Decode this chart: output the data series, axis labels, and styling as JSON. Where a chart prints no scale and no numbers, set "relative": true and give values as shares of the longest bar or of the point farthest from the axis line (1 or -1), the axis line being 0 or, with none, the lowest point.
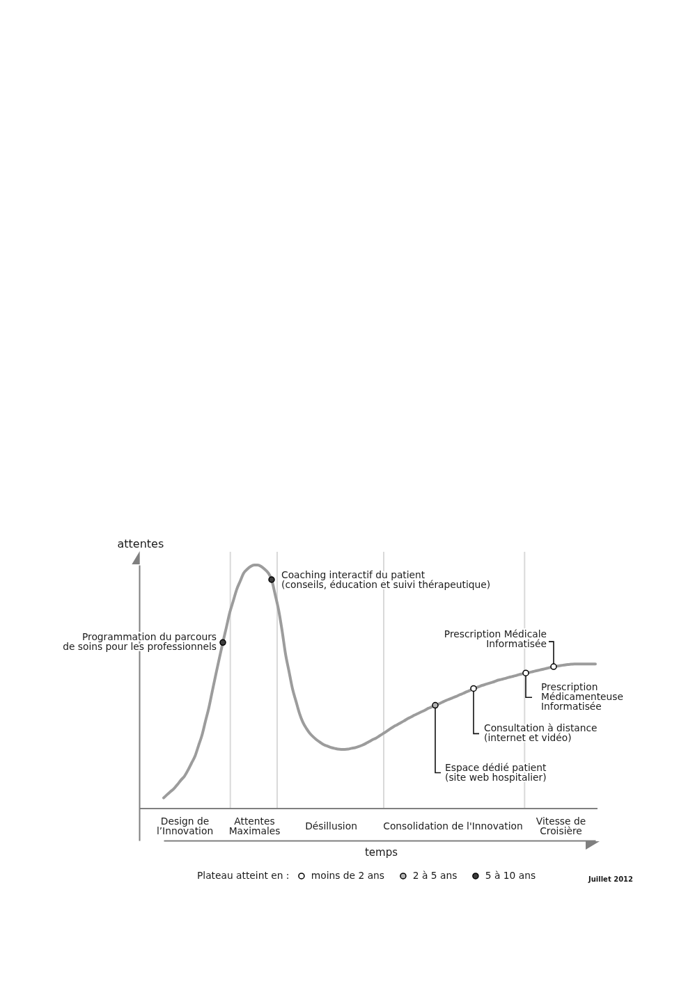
{
  "chart_data": {
    "type": "line",
    "xlabel": "temps",
    "ylabel": "attentes",
    "relative": true,
    "tick_labels": "x",
    "marker": "circle",
    "legend": "bottom",
    "legend_title": "Plateau atteint en :",
    "categories": [
      null,
      null,
      null,
      null,
      null,
      null,
      "Design de\nl’Innovation",
      null,
      null,
      null,
      null,
      null,
      null,
      null,
      null,
      null,
      null,
      null,
      null,
      null,
      null,
      null,
      null,
      null,
      null,
      null,
      "Attentes\nMaximales",
      null,
      null,
      null,
      null,
      null,
      null,
      null,
      null,
      null,
      null,
      null,
      null,
      null,
      null,
      null,
      null,
      null,
      null,
      null,
      null,
      null,
      "Désillusion",
      null,
      null,
      null,
      null,
      null,
      null,
      null,
      null,
      null,
      null,
      null,
      null,
      null,
      null,
      null,
      null,
      null,
      null,
      null,
      null,
      null,
      null,
      null,
      null,
      null,
      null,
      null,
      null,
      null,
      null,
      null,
      null,
      null,
      null,
      "Consolidation de l'Innovation",
      null,
      null,
      null,
      null,
      null,
      null,
      null,
      null,
      null,
      null,
      null,
      null,
      null,
      null,
      null,
      null,
      null,
      null,
      null,
      null,
      null,
      null,
      null,
      null,
      null,
      null,
      null,
      null,
      null,
      null,
      "Vitesse de\nCroisière",
      null,
      null,
      null,
      null,
      null,
      null,
      null,
      null,
      null,
      null
    ],
    "series": [
      {
        "marker": "none",
        "color": "#9c9c9c",
        "values": [
          0.155,
          0.167,
          0.178,
          0.189,
          0.204,
          0.22,
          0.234,
          0.256,
          0.281,
          0.306,
          0.344,
          0.382,
          0.433,
          0.483,
          0.544,
          0.604,
          0.662,
          0.719,
          0.773,
          0.828,
          0.87,
          0.912,
          0.942,
          0.971,
          0.985,
          0.995,
          1,
          1,
          0.995,
          0.985,
          0.972,
          0.947,
          0.894,
          0.838,
          0.763,
          0.677,
          0.614,
          0.551,
          0.506,
          0.462,
          0.429,
          0.407,
          0.389,
          0.376,
          0.365,
          0.356,
          0.348,
          0.343,
          0.338,
          0.335,
          0.332,
          0.331,
          0.331,
          0.332,
          0.335,
          0.337,
          0.341,
          0.346,
          0.352,
          0.359,
          0.366,
          0.372,
          0.38,
          0.388,
          0.396,
          0.405,
          0.413,
          0.42,
          0.427,
          0.434,
          0.442,
          0.448,
          0.455,
          0.461,
          0.467,
          0.473,
          0.48,
          0.485,
          0.491,
          0.496,
          0.502,
          0.508,
          0.513,
          0.518,
          0.523,
          0.529,
          0.534,
          0.54,
          0.545,
          0.552,
          0.556,
          0.561,
          0.565,
          0.569,
          0.573,
          0.577,
          0.582,
          0.585,
          0.588,
          0.592,
          0.595,
          0.598,
          0.602,
          0.605,
          0.608,
          0.61,
          0.613,
          0.616,
          0.619,
          0.622,
          0.625,
          0.628,
          0.631,
          0.633,
          0.635,
          0.637,
          0.639,
          0.64,
          0.641,
          0.641,
          0.641,
          0.641,
          0.641,
          0.641,
          0.641
        ]
      },
      {
        "type": "scatter",
        "name": "moins de 2 ans",
        "color": "#ffffff",
        "values": [
          null,
          null,
          null,
          null,
          null,
          null,
          null,
          null,
          null,
          null,
          null,
          null,
          null,
          null,
          null,
          null,
          null,
          null,
          null,
          null,
          null,
          null,
          null,
          null,
          null,
          null,
          null,
          null,
          null,
          null,
          null,
          null,
          null,
          null,
          null,
          null,
          null,
          null,
          null,
          null,
          null,
          null,
          null,
          null,
          null,
          null,
          null,
          null,
          null,
          null,
          null,
          null,
          null,
          null,
          null,
          null,
          null,
          null,
          null,
          null,
          null,
          null,
          null,
          null,
          null,
          null,
          null,
          null,
          null,
          null,
          null,
          null,
          null,
          null,
          null,
          null,
          null,
          null,
          null,
          null,
          null,
          null,
          null,
          null,
          null,
          null,
          null,
          null,
          null,
          0.552,
          null,
          null,
          null,
          null,
          null,
          null,
          null,
          null,
          null,
          null,
          null,
          null,
          null,
          null,
          0.608,
          null,
          null,
          null,
          null,
          null,
          null,
          null,
          0.631,
          null,
          null,
          null,
          null,
          null,
          null,
          null,
          null,
          null,
          null,
          null,
          null
        ]
      },
      {
        "type": "scatter",
        "name": "2 à 5 ans",
        "color": "#b4b4b4",
        "values": [
          null,
          null,
          null,
          null,
          null,
          null,
          null,
          null,
          null,
          null,
          null,
          null,
          null,
          null,
          null,
          null,
          null,
          null,
          null,
          null,
          null,
          null,
          null,
          null,
          null,
          null,
          null,
          null,
          null,
          null,
          null,
          null,
          null,
          null,
          null,
          null,
          null,
          null,
          null,
          null,
          null,
          null,
          null,
          null,
          null,
          null,
          null,
          null,
          null,
          null,
          null,
          null,
          null,
          null,
          null,
          null,
          null,
          null,
          null,
          null,
          null,
          null,
          null,
          null,
          null,
          null,
          null,
          null,
          null,
          null,
          null,
          null,
          null,
          null,
          null,
          null,
          null,
          null,
          0.491,
          null,
          null,
          null,
          null,
          null,
          null,
          null,
          null,
          null,
          null,
          null,
          null,
          null,
          null,
          null,
          null,
          null,
          null,
          null,
          null,
          null,
          null,
          null,
          null,
          null,
          null,
          null,
          null,
          null,
          null,
          null,
          null,
          null,
          null,
          null,
          null,
          null,
          null,
          null,
          null,
          null,
          null,
          null,
          null,
          null,
          null
        ]
      },
      {
        "type": "scatter",
        "name": "5 à 10 ans",
        "color": "#3c3c3c",
        "values": [
          null,
          null,
          null,
          null,
          null,
          null,
          null,
          null,
          null,
          null,
          null,
          null,
          null,
          null,
          null,
          null,
          null,
          0.719,
          null,
          null,
          null,
          null,
          null,
          null,
          null,
          null,
          null,
          null,
          null,
          null,
          null,
          0.947,
          null,
          null,
          null,
          null,
          null,
          null,
          null,
          null,
          null,
          null,
          null,
          null,
          null,
          null,
          null,
          null,
          null,
          null,
          null,
          null,
          null,
          null,
          null,
          null,
          null,
          null,
          null,
          null,
          null,
          null,
          null,
          null,
          null,
          null,
          null,
          null,
          null,
          null,
          null,
          null,
          null,
          null,
          null,
          null,
          null,
          null,
          null,
          null,
          null,
          null,
          null,
          null,
          null,
          null,
          null,
          null,
          null,
          null,
          null,
          null,
          null,
          null,
          null,
          null,
          null,
          null,
          null,
          null,
          null,
          null,
          null,
          null,
          null,
          null,
          null,
          null,
          null,
          null,
          null,
          null,
          null,
          null,
          null,
          null,
          null,
          null,
          null,
          null,
          null,
          null,
          null,
          null,
          null
        ]
      }
    ],
    "ref_lines": [
      {
        "axis": "y",
        "value": 0.116,
        "color": "#7f7f7f"
      }
    ],
    "annotations": [
      "Programmation du parcours\nde soins pour les professionnels",
      "Coaching interactif du patient\n(conseils, éducation et suivi thérapeutique)",
      "Espace dédié patient\n(site web hospitalier)",
      "Consultation à distance\n(internet et vidéo)",
      "Prescription\nMédicamenteuse\nInformatisée",
      "Prescription Médicale\nInformatisée",
      "Juillet 2012"
    ]
  }
}
